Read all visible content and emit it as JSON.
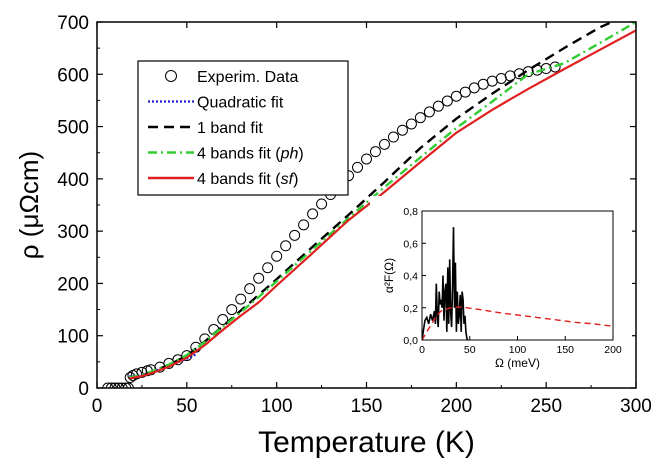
{
  "chart_data": [
    {
      "type": "line",
      "xlabel": "Temperature (K)",
      "ylabel": "ρ  (μΩcm)",
      "xlim": [
        0,
        300
      ],
      "ylim": [
        0,
        700
      ],
      "xticks": [
        "0",
        "50",
        "100",
        "150",
        "200",
        "250",
        "300"
      ],
      "yticks": [
        "0",
        "100",
        "200",
        "300",
        "400",
        "500",
        "600",
        "700"
      ],
      "legend": {
        "placement": "top-left",
        "entries": [
          {
            "label": "Experim. Data",
            "style": "open-circle",
            "color": "#000000"
          },
          {
            "label": "Quadratic fit",
            "style": "dotted",
            "color": "#1f1fcf"
          },
          {
            "label": "1 band fit",
            "style": "dashed",
            "color": "#000000"
          },
          {
            "label": "4 bands fit (",
            "italic": "ph",
            "after": ")",
            "style": "dash-dot",
            "color": "#33cc33"
          },
          {
            "label": "4 bands fit (",
            "italic": "sf",
            "after": ")",
            "style": "solid",
            "color": "#e02020"
          }
        ]
      },
      "series": [
        {
          "name": "Experim. Data",
          "marker": "open-circle",
          "x": [
            6,
            8,
            10,
            12,
            14,
            16,
            17.5,
            18.5,
            20,
            22,
            25,
            28,
            30,
            35,
            40,
            45,
            50,
            55,
            60,
            65,
            70,
            75,
            80,
            85,
            90,
            95,
            100,
            105,
            110,
            115,
            120,
            125,
            130,
            135,
            140,
            145,
            150,
            155,
            160,
            165,
            170,
            175,
            180,
            185,
            190,
            195,
            200,
            205,
            210,
            215,
            220,
            225,
            230,
            235,
            240,
            245,
            250,
            255
          ],
          "y": [
            0,
            0,
            0,
            0,
            0,
            0,
            0,
            20,
            24,
            27,
            30,
            33,
            35,
            40,
            47,
            54,
            62,
            78,
            94,
            112,
            131,
            150,
            170,
            190,
            210,
            230,
            252,
            272,
            292,
            312,
            333,
            352,
            370,
            389,
            406,
            422,
            438,
            452,
            466,
            480,
            493,
            505,
            517,
            528,
            539,
            549,
            558,
            566,
            574,
            581,
            587,
            592,
            597,
            601,
            605,
            608,
            611,
            614
          ]
        },
        {
          "name": "Quadratic fit",
          "x": [
            18,
            25,
            30,
            35,
            40,
            45,
            50,
            55
          ],
          "y": [
            22,
            25,
            30,
            36,
            42,
            49,
            56,
            64
          ]
        },
        {
          "name": "1 band fit",
          "x": [
            18,
            25,
            30,
            40,
            50,
            60,
            70,
            80,
            90,
            100,
            120,
            140,
            160,
            180,
            200,
            220,
            240,
            260,
            280,
            290
          ],
          "y": [
            18,
            24,
            30,
            44,
            62,
            89,
            118,
            148,
            178,
            208,
            270,
            331,
            394,
            459,
            515,
            563,
            608,
            650,
            690,
            705
          ]
        },
        {
          "name": "4 bands fit (ph)",
          "x": [
            18,
            25,
            30,
            40,
            50,
            60,
            70,
            80,
            90,
            100,
            120,
            140,
            160,
            180,
            200,
            220,
            240,
            260,
            280,
            300
          ],
          "y": [
            20,
            25,
            31,
            45,
            63,
            88,
            117,
            145,
            174,
            204,
            265,
            325,
            384,
            441,
            497,
            548,
            600,
            621,
            660,
            700
          ]
        },
        {
          "name": "4 bands fit (sf)",
          "x": [
            18,
            25,
            30,
            40,
            50,
            60,
            70,
            80,
            90,
            100,
            120,
            140,
            160,
            180,
            200,
            220,
            240,
            260,
            280,
            300
          ],
          "y": [
            18,
            23,
            28,
            41,
            58,
            82,
            111,
            138,
            164,
            196,
            258,
            321,
            375,
            432,
            488,
            532,
            572,
            610,
            647,
            684
          ]
        }
      ]
    },
    {
      "type": "line",
      "xlabel": "Ω (meV)",
      "ylabel": "α²F(Ω)",
      "xlim": [
        0,
        200
      ],
      "ylim": [
        0,
        0.8
      ],
      "xticks": [
        "0",
        "50",
        "100",
        "150",
        "200"
      ],
      "yticks": [
        "0,0",
        "0,2",
        "0,4",
        "0,6",
        "0,8"
      ],
      "series": [
        {
          "name": "solid-spectrum",
          "color": "#000000",
          "x": [
            0,
            3,
            5,
            7,
            9,
            11,
            13,
            14,
            15,
            16,
            17,
            18,
            19,
            20,
            21,
            22,
            23,
            24,
            25,
            26,
            27,
            28,
            29,
            30,
            31,
            32,
            33,
            34,
            35,
            36,
            37,
            38,
            39,
            40,
            41,
            42,
            43,
            44,
            45,
            46,
            47,
            48
          ],
          "y": [
            0,
            0.12,
            0.14,
            0.1,
            0.16,
            0.12,
            0.18,
            0.1,
            0.35,
            0.15,
            0.08,
            0.3,
            0.22,
            0.25,
            0.2,
            0.4,
            0.12,
            0.3,
            0.35,
            0.05,
            0.45,
            0.1,
            0.5,
            0.18,
            0.08,
            0.35,
            0.7,
            0.2,
            0.48,
            0.05,
            0.3,
            0.1,
            0.15,
            0.28,
            0.05,
            0.3,
            0.25,
            0.1,
            0.15,
            0.05,
            0.01,
            0
          ]
        },
        {
          "name": "dashed-spectrum",
          "color": "#e02020",
          "x": [
            0,
            5,
            10,
            15,
            20,
            30,
            40,
            60,
            80,
            100,
            120,
            140,
            160,
            180,
            200
          ],
          "y": [
            0,
            0.05,
            0.1,
            0.15,
            0.18,
            0.2,
            0.205,
            0.19,
            0.17,
            0.155,
            0.14,
            0.125,
            0.11,
            0.1,
            0.085
          ]
        }
      ]
    }
  ]
}
